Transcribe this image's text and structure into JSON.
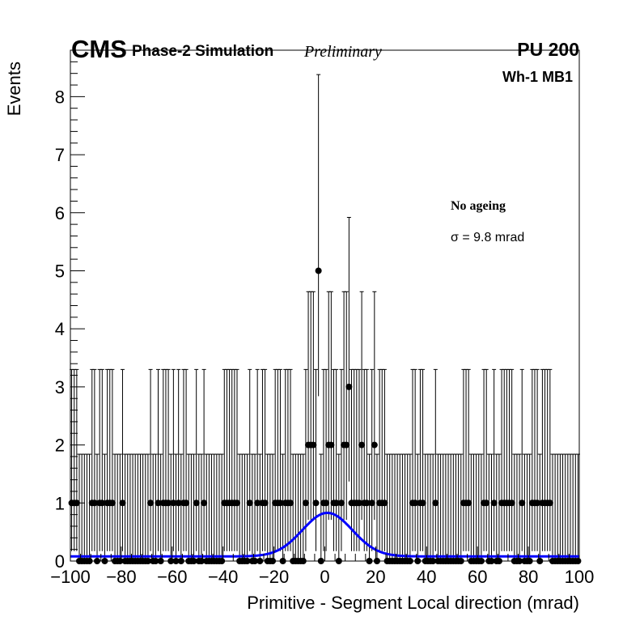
{
  "header": {
    "logo": "CMS",
    "subtitle": "Phase-2 Simulation",
    "status": "Preliminary",
    "pileup": "PU 200",
    "region": "Wh-1 MB1"
  },
  "annotations": {
    "condition": "No ageing",
    "sigma": "σ = 9.8 mrad"
  },
  "chart_data": {
    "type": "scatter",
    "title": "",
    "xlabel": "Primitive - Segment Local direction (mrad)",
    "ylabel": "Events",
    "xlim": [
      -100,
      100
    ],
    "ylim": [
      0,
      8.8
    ],
    "xticks": [
      "−100",
      "−80",
      "−60",
      "−40",
      "−20",
      "0",
      "20",
      "40",
      "60",
      "80",
      "100"
    ],
    "xtick_values": [
      -100,
      -80,
      -60,
      -40,
      -20,
      0,
      20,
      40,
      60,
      80,
      100
    ],
    "yticks": [
      "0",
      "1",
      "2",
      "3",
      "4",
      "5",
      "6",
      "7",
      "8"
    ],
    "ytick_values": [
      0,
      1,
      2,
      3,
      4,
      5,
      6,
      7,
      8
    ],
    "grid": false,
    "legend": "none",
    "bin_width": 1,
    "error_bars": "poisson",
    "nonzero_bins": {
      "x": [
        -99.5,
        -98.5,
        -97.5,
        -91.5,
        -90.5,
        -88.5,
        -87.5,
        -85.5,
        -84.5,
        -83.5,
        -79.5,
        -68.5,
        -65.5,
        -63.5,
        -62.5,
        -61.5,
        -59.5,
        -57.5,
        -55.5,
        -54.5,
        -50.5,
        -47.5,
        -39.5,
        -38.5,
        -37.5,
        -36.5,
        -35.5,
        -34.5,
        -29.5,
        -26.5,
        -24.5,
        -23.5,
        -19.5,
        -18.5,
        -17.5,
        -15.5,
        -14.5,
        -13.5,
        -7.5,
        -6.5,
        -5.5,
        -4.5,
        -3.5,
        -2.5,
        -0.5,
        0.5,
        1.5,
        2.5,
        3.5,
        4.5,
        6.5,
        7.5,
        8.5,
        9.5,
        10.5,
        11.5,
        12.5,
        13.5,
        14.5,
        15.5,
        16.5,
        18.5,
        19.5,
        21.5,
        22.5,
        23.5,
        34.5,
        35.5,
        37.5,
        38.5,
        43.5,
        54.5,
        55.5,
        56.5,
        62.5,
        63.5,
        66.5,
        69.5,
        70.5,
        71.5,
        72.5,
        73.5,
        77.5,
        81.5,
        82.5,
        83.5,
        85.5,
        86.5,
        87.5,
        88.5
      ],
      "y": [
        1,
        1,
        1,
        1,
        1,
        1,
        1,
        1,
        1,
        1,
        1,
        1,
        1,
        1,
        1,
        1,
        1,
        1,
        1,
        1,
        1,
        1,
        1,
        1,
        1,
        1,
        1,
        1,
        1,
        1,
        1,
        1,
        1,
        1,
        1,
        1,
        1,
        1,
        1,
        2,
        2,
        2,
        1,
        5,
        1,
        1,
        2,
        2,
        1,
        1,
        1,
        2,
        2,
        3,
        1,
        1,
        1,
        1,
        2,
        1,
        1,
        1,
        2,
        1,
        1,
        1,
        1,
        1,
        1,
        1,
        1,
        1,
        1,
        1,
        1,
        1,
        1,
        1,
        1,
        1,
        1,
        1,
        1,
        1,
        1,
        1,
        1,
        1,
        1,
        1
      ]
    },
    "fit": {
      "function": "gaussian + constant",
      "mean": 1.0,
      "sigma": 9.8,
      "amplitude": 0.75,
      "constant": 0.08,
      "color": "#0000ff"
    },
    "marker_color": "#000000"
  }
}
